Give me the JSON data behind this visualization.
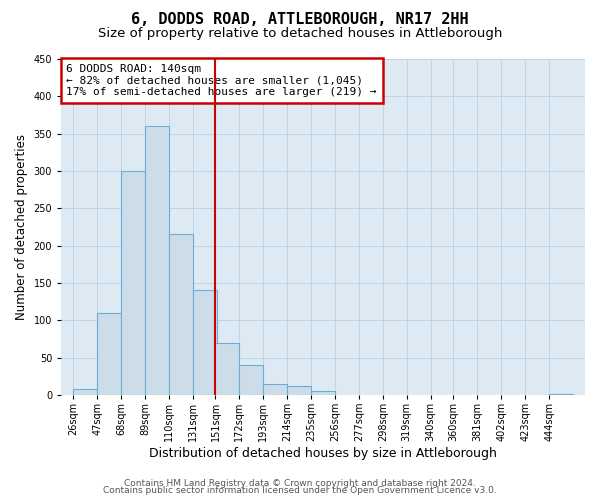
{
  "title": "6, DODDS ROAD, ATTLEBOROUGH, NR17 2HH",
  "subtitle": "Size of property relative to detached houses in Attleborough",
  "xlabel": "Distribution of detached houses by size in Attleborough",
  "ylabel": "Number of detached properties",
  "footer_line1": "Contains HM Land Registry data © Crown copyright and database right 2024.",
  "footer_line2": "Contains public sector information licensed under the Open Government Licence v3.0.",
  "bin_labels": [
    "26sqm",
    "47sqm",
    "68sqm",
    "89sqm",
    "110sqm",
    "131sqm",
    "151sqm",
    "172sqm",
    "193sqm",
    "214sqm",
    "235sqm",
    "256sqm",
    "277sqm",
    "298sqm",
    "319sqm",
    "340sqm",
    "360sqm",
    "381sqm",
    "402sqm",
    "423sqm",
    "444sqm"
  ],
  "bar_values": [
    8,
    110,
    300,
    360,
    215,
    140,
    70,
    40,
    15,
    12,
    6,
    0,
    0,
    0,
    0,
    0,
    0,
    0,
    0,
    0,
    2
  ],
  "bar_color": "#ccdde9",
  "bar_edge_color": "#6aadd5",
  "vline_x": 151,
  "vline_color": "#cc0000",
  "annotation_box_text": "6 DODDS ROAD: 140sqm\n← 82% of detached houses are smaller (1,045)\n17% of semi-detached houses are larger (219) →",
  "annotation_box_color": "#cc0000",
  "annotation_box_facecolor": "white",
  "ylim": [
    0,
    450
  ],
  "bin_width": 21,
  "grid_color": "#c0d4e4",
  "bg_color": "#ddeaf4",
  "title_fontsize": 11,
  "subtitle_fontsize": 9.5,
  "xlabel_fontsize": 9,
  "ylabel_fontsize": 8.5,
  "tick_fontsize": 7,
  "annotation_fontsize": 8,
  "footer_fontsize": 6.5
}
